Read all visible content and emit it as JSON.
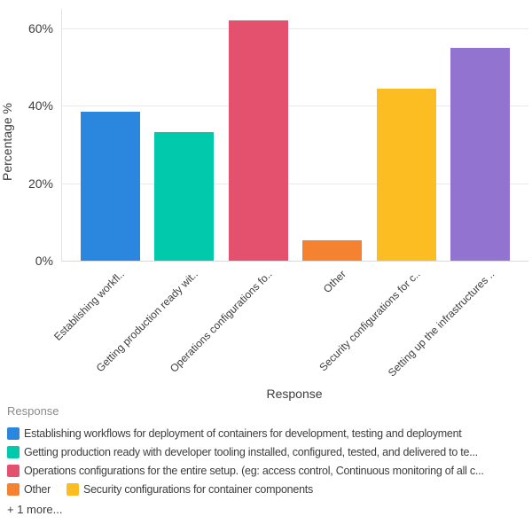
{
  "chart_data": {
    "type": "bar",
    "title": "",
    "xlabel": "Response",
    "ylabel": "Percentage %",
    "ylim": [
      0,
      65
    ],
    "yticks": [
      0,
      20,
      40,
      60
    ],
    "ytick_labels": [
      "0%",
      "20%",
      "40%",
      "60%"
    ],
    "grid": "horizontal",
    "legend_position": "bottom",
    "categories": [
      "Establishing workflows for deployment of containers for development, testing and deployment",
      "Getting production ready with developer tooling installed, configured, tested, and delivered to te...",
      "Operations configurations for the entire setup. (eg: access control, Continuous monitoring of all c...",
      "Other",
      "Security configurations for container components",
      "Setting up the infrastructures .."
    ],
    "xtick_labels": [
      "Establishing workfl..",
      "Getting production ready wit..",
      "Operations configurations fo..",
      "Other",
      "Security configurations for c..",
      "Setting up the infrastructures .."
    ],
    "values": [
      38.5,
      33.3,
      62.1,
      5.2,
      44.4,
      54.9
    ],
    "colors": [
      "#2b87dd",
      "#00c9ac",
      "#e4516f",
      "#f58230",
      "#fcbd23",
      "#9273d0"
    ]
  },
  "legend": {
    "title": "Response",
    "items": [
      {
        "label": "Establishing workflows for deployment of containers for development, testing and deployment",
        "color": "#2b87dd"
      },
      {
        "label": "Getting production ready with developer tooling installed, configured, tested, and delivered to te...",
        "color": "#00c9ac"
      },
      {
        "label": "Operations configurations for the entire setup. (eg: access control, Continuous monitoring of all c...",
        "color": "#e4516f"
      },
      {
        "label": "Other",
        "color": "#f58230"
      },
      {
        "label": "Security configurations for container components",
        "color": "#fcbd23"
      }
    ],
    "more_label": "+ 1 more..."
  }
}
